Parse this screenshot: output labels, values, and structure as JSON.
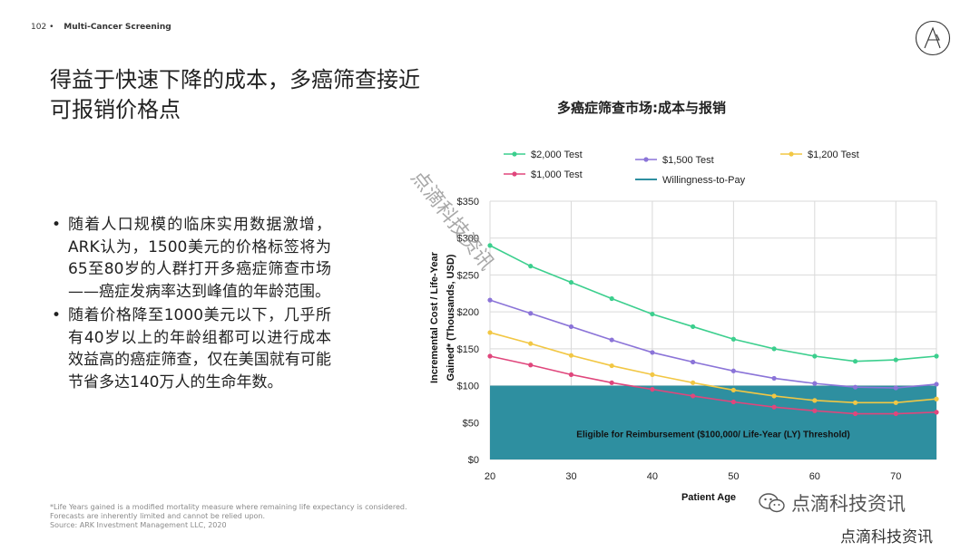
{
  "header": {
    "page_number": "102",
    "bullet": "•",
    "section": "Multi-Cancer Screening"
  },
  "title": "得益于快速下降的成本，多癌筛查接近可报销价格点",
  "bullets": [
    {
      "marker": "•",
      "text": "随着人口规模的临床实用数据激增，ARK认为，1500美元的价格标签将为65至80岁的人群打开多癌症筛查市场——癌症发病率达到峰值的年龄范围。"
    },
    {
      "marker": "•",
      "text": "随着价格降至1000美元以下，几乎所有40岁以上的年龄组都可以进行成本效益高的癌症筛查，仅在美国就有可能节省多达140万人的生命年数。"
    }
  ],
  "footnote": {
    "line1": "*Life Years gained is a modified mortality measure where remaining life expectancy is considered.",
    "line2": "Forecasts are inherently limited and cannot be relied upon.",
    "line3": "Source: ARK Investment Management LLC, 2020"
  },
  "watermark": {
    "diagonal": "点滴科技资讯",
    "line1": "点滴科技资讯",
    "line2": "点滴科技资讯",
    "icon": "wechat-icon"
  },
  "logo": {
    "icon": "ark-logo-icon"
  },
  "chart_data": {
    "type": "line",
    "title": "多癌症筛查市场:成本与报销",
    "xlabel": "Patient Age",
    "ylabel": "Incremental Cost / Life-Year Gained* (Thousands, USD)",
    "xlim": [
      20,
      75
    ],
    "ylim": [
      0,
      350
    ],
    "x_ticks": [
      20,
      30,
      40,
      50,
      60,
      70
    ],
    "y_ticks": [
      0,
      50,
      100,
      150,
      200,
      250,
      300,
      350
    ],
    "y_tick_labels": [
      "$0",
      "$50",
      "$100",
      "$150",
      "$200",
      "$250",
      "$300",
      "$350"
    ],
    "x": [
      20,
      25,
      30,
      35,
      40,
      45,
      50,
      55,
      60,
      65,
      70,
      75
    ],
    "series": [
      {
        "name": "$2,000 Test",
        "color": "#3ccf8e",
        "values": [
          290,
          262,
          240,
          218,
          197,
          180,
          163,
          150,
          140,
          133,
          135,
          140
        ]
      },
      {
        "name": "$1,500 Test",
        "color": "#8b74d8",
        "values": [
          216,
          198,
          180,
          162,
          145,
          132,
          120,
          110,
          103,
          98,
          97,
          102
        ]
      },
      {
        "name": "$1,200 Test",
        "color": "#f2c744",
        "values": [
          172,
          157,
          141,
          127,
          115,
          104,
          94,
          86,
          80,
          77,
          77,
          82
        ]
      },
      {
        "name": "$1,000 Test",
        "color": "#e0467c",
        "values": [
          140,
          128,
          115,
          104,
          95,
          86,
          78,
          71,
          66,
          62,
          62,
          64
        ]
      }
    ],
    "threshold": {
      "name": "Willingness-to-Pay",
      "value": 100,
      "color": "#2e8fa0",
      "label": "Eligible for Reimbursement ($100,000/ Life-Year (LY) Threshold)"
    },
    "grid": true,
    "legend_position": "top"
  }
}
